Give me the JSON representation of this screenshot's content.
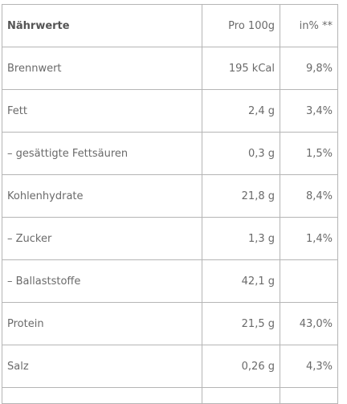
{
  "table": {
    "header": {
      "label": "Nährwerte",
      "per100": "Pro 100g",
      "percent": "in% **"
    },
    "rows": [
      {
        "label": "Brennwert",
        "value": "195 kCal",
        "percent": "9,8%"
      },
      {
        "label": "Fett",
        "value": "2,4 g",
        "percent": "3,4%"
      },
      {
        "label": "– gesättigte Fettsäuren",
        "value": "0,3 g",
        "percent": "1,5%"
      },
      {
        "label": "Kohlenhydrate",
        "value": "21,8 g",
        "percent": "8,4%"
      },
      {
        "label": "– Zucker",
        "value": "1,3 g",
        "percent": "1,4%"
      },
      {
        "label": "– Ballaststoffe",
        "value": "42,1 g",
        "percent": ""
      },
      {
        "label": "Protein",
        "value": "21,5 g",
        "percent": "43,0%"
      },
      {
        "label": "Salz",
        "value": "0,26 g",
        "percent": "4,3%"
      }
    ]
  }
}
